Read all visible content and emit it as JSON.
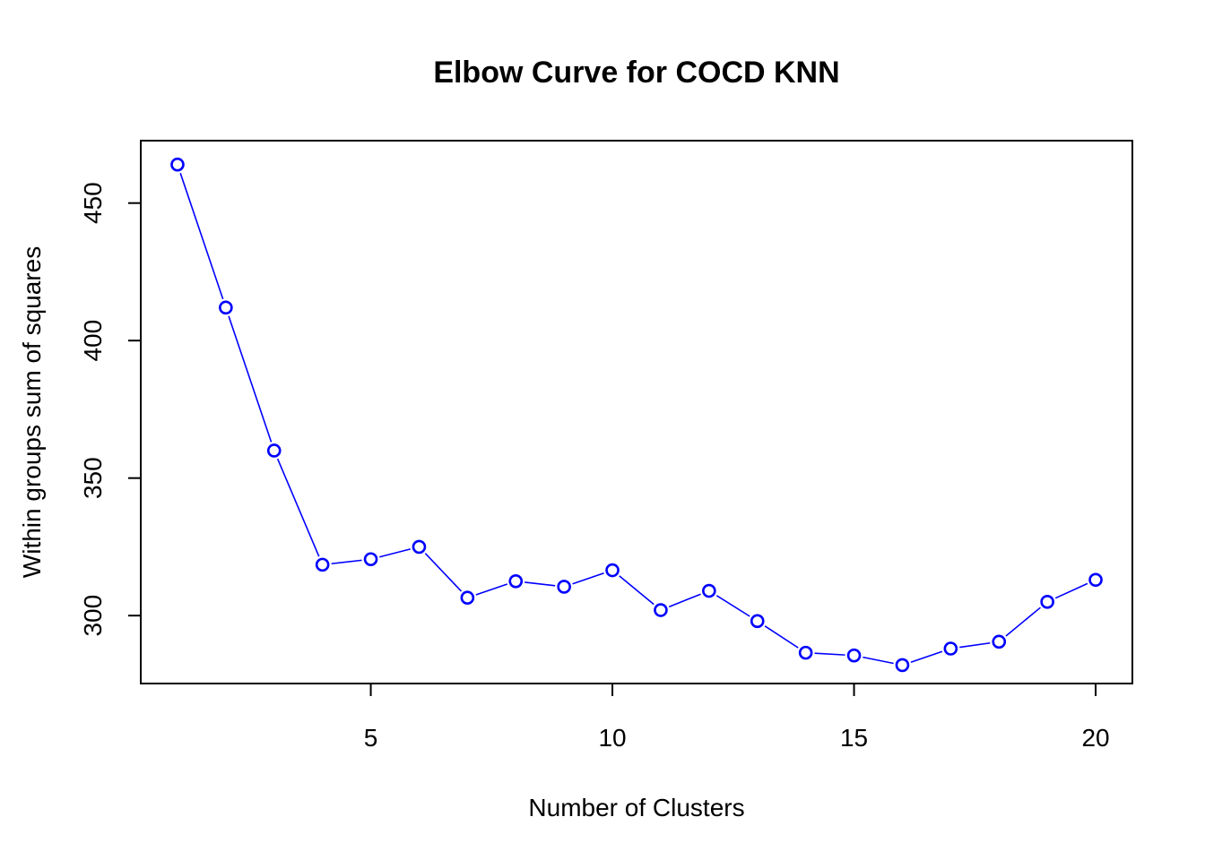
{
  "chart_data": {
    "type": "line",
    "title": "Elbow Curve for COCD KNN",
    "xlabel": "Number of Clusters",
    "ylabel": "Within groups sum of squares",
    "x": [
      1,
      2,
      3,
      4,
      5,
      6,
      7,
      8,
      9,
      10,
      11,
      12,
      13,
      14,
      15,
      16,
      17,
      18,
      19,
      20
    ],
    "series": [
      {
        "values": [
          464,
          412,
          360,
          318.5,
          320.5,
          325,
          306.5,
          312.5,
          310.5,
          316.5,
          302,
          309,
          298,
          286.5,
          285.5,
          282,
          288,
          290.5,
          305,
          313
        ],
        "color": "#0000ff",
        "marker": "open-circle"
      }
    ],
    "xticks": [
      "5",
      "10",
      "15",
      "20"
    ],
    "yticks": [
      "300",
      "350",
      "400",
      "450"
    ],
    "xlim": [
      0.24,
      20.76
    ],
    "ylim": [
      275.3,
      472.7
    ],
    "grid": false,
    "legend": "none"
  }
}
